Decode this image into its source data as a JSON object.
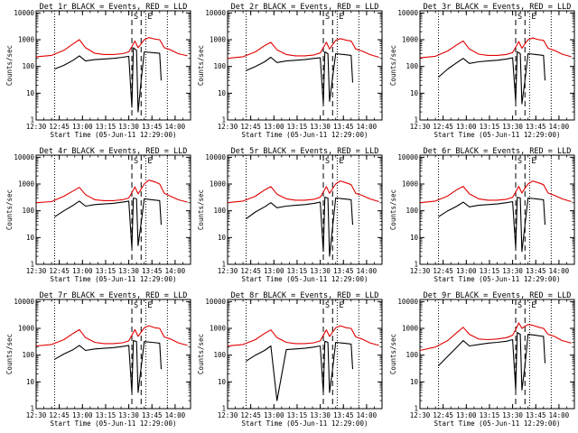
{
  "style": {
    "events_color": "#000000",
    "lld_color": "#e00000",
    "background": "#ffffff",
    "y_scale": "log",
    "grid": false
  },
  "common": {
    "xlabel": "Start Time (05-Jun-11 12:29:00)",
    "ylabel": "Counts/sec",
    "x_ticks": [
      "12:30",
      "12:45",
      "13:00",
      "13:15",
      "13:30",
      "13:45",
      "14:00"
    ],
    "y_ticks": [
      "1",
      "10",
      "100",
      "1000",
      "10000"
    ],
    "marker_S": "S",
    "marker_E": "E"
  },
  "chart_data": [
    {
      "type": "line",
      "title": "Det 1r BLACK = Events, RED = LLD",
      "xlim": [
        "12:30",
        "14:10"
      ],
      "ylim": [
        1,
        12000
      ],
      "dotted_vlines": [
        "12:42",
        "13:41",
        "13:55"
      ],
      "dashed_vlines": [
        "13:32",
        "13:38"
      ],
      "events": {
        "x": [
          "12:42",
          "12:48",
          "12:54",
          "12:58",
          "13:02",
          "13:08",
          "13:14",
          "13:20",
          "13:26",
          "13:30",
          "13:32",
          "13:33",
          "13:35",
          "13:36",
          "13:38",
          "13:40",
          "13:45",
          "13:50",
          "13:51"
        ],
        "y": [
          80,
          110,
          170,
          250,
          160,
          180,
          190,
          200,
          220,
          240,
          3,
          500,
          400,
          2,
          30,
          350,
          330,
          310,
          30
        ]
      },
      "lld": {
        "x": [
          "12:30",
          "12:40",
          "12:48",
          "12:54",
          "12:58",
          "13:02",
          "13:08",
          "13:14",
          "13:20",
          "13:26",
          "13:30",
          "13:32",
          "13:34",
          "13:36",
          "13:38",
          "13:40",
          "13:43",
          "13:47",
          "13:50",
          "13:53",
          "13:57",
          "14:02",
          "14:08"
        ],
        "y": [
          230,
          260,
          400,
          700,
          1000,
          500,
          310,
          280,
          280,
          300,
          350,
          550,
          900,
          500,
          700,
          1000,
          1200,
          1050,
          1000,
          500,
          420,
          300,
          250
        ]
      }
    },
    {
      "type": "line",
      "title": "Det 2r BLACK = Events, RED = LLD",
      "xlim": [
        "12:30",
        "14:10"
      ],
      "ylim": [
        1,
        12000
      ],
      "dotted_vlines": [
        "12:42",
        "13:41",
        "13:55"
      ],
      "dashed_vlines": [
        "13:32",
        "13:38"
      ],
      "events": {
        "x": [
          "12:42",
          "12:48",
          "12:54",
          "12:58",
          "13:02",
          "13:08",
          "13:14",
          "13:20",
          "13:26",
          "13:30",
          "13:32",
          "13:33",
          "13:35",
          "13:36",
          "13:38",
          "13:40",
          "13:45",
          "13:50",
          "13:51"
        ],
        "y": [
          70,
          100,
          150,
          220,
          140,
          160,
          170,
          180,
          200,
          210,
          4,
          350,
          300,
          5,
          40,
          300,
          280,
          260,
          25
        ]
      },
      "lld": {
        "x": [
          "12:30",
          "12:40",
          "12:48",
          "12:54",
          "12:58",
          "13:02",
          "13:08",
          "13:14",
          "13:20",
          "13:26",
          "13:30",
          "13:32",
          "13:34",
          "13:36",
          "13:38",
          "13:40",
          "13:43",
          "13:47",
          "13:50",
          "13:53",
          "13:57",
          "14:02",
          "14:08"
        ],
        "y": [
          200,
          230,
          350,
          600,
          800,
          420,
          280,
          250,
          250,
          270,
          320,
          500,
          800,
          450,
          650,
          950,
          1100,
          950,
          900,
          450,
          380,
          280,
          220
        ]
      }
    },
    {
      "type": "line",
      "title": "Det 3r BLACK = Events, RED = LLD",
      "xlim": [
        "12:30",
        "14:10"
      ],
      "ylim": [
        1,
        12000
      ],
      "dotted_vlines": [
        "12:42",
        "13:41",
        "13:55"
      ],
      "dashed_vlines": [
        "13:32",
        "13:38"
      ],
      "events": {
        "x": [
          "12:42",
          "12:48",
          "12:54",
          "12:58",
          "13:02",
          "13:08",
          "13:14",
          "13:20",
          "13:26",
          "13:30",
          "13:32",
          "13:33",
          "13:35",
          "13:36",
          "13:38",
          "13:40",
          "13:45",
          "13:50",
          "13:51"
        ],
        "y": [
          40,
          80,
          140,
          200,
          130,
          150,
          160,
          170,
          190,
          210,
          5,
          350,
          300,
          4,
          30,
          300,
          280,
          260,
          30
        ]
      },
      "lld": {
        "x": [
          "12:30",
          "12:40",
          "12:48",
          "12:54",
          "12:58",
          "13:02",
          "13:08",
          "13:14",
          "13:20",
          "13:26",
          "13:30",
          "13:32",
          "13:34",
          "13:36",
          "13:38",
          "13:40",
          "13:43",
          "13:47",
          "13:50",
          "13:53",
          "13:57",
          "14:02",
          "14:08"
        ],
        "y": [
          210,
          240,
          380,
          650,
          900,
          450,
          290,
          260,
          260,
          280,
          330,
          520,
          850,
          480,
          700,
          1000,
          1150,
          1000,
          950,
          480,
          400,
          290,
          230
        ]
      }
    },
    {
      "type": "line",
      "title": "Det 4r BLACK = Events, RED = LLD",
      "xlim": [
        "12:30",
        "14:10"
      ],
      "ylim": [
        1,
        12000
      ],
      "dotted_vlines": [
        "12:42",
        "13:41",
        "13:55"
      ],
      "dashed_vlines": [
        "13:32",
        "13:38"
      ],
      "events": {
        "x": [
          "12:42",
          "12:48",
          "12:54",
          "12:58",
          "13:02",
          "13:08",
          "13:14",
          "13:20",
          "13:26",
          "13:30",
          "13:32",
          "13:33",
          "13:35",
          "13:36",
          "13:38",
          "13:40",
          "13:45",
          "13:50",
          "13:51"
        ],
        "y": [
          60,
          100,
          160,
          230,
          150,
          170,
          180,
          190,
          210,
          230,
          4,
          300,
          280,
          5,
          35,
          280,
          260,
          240,
          30
        ]
      },
      "lld": {
        "x": [
          "12:30",
          "12:40",
          "12:48",
          "12:54",
          "12:58",
          "13:02",
          "13:08",
          "13:14",
          "13:20",
          "13:26",
          "13:30",
          "13:32",
          "13:34",
          "13:36",
          "13:38",
          "13:40",
          "13:43",
          "13:47",
          "13:50",
          "13:53",
          "13:57",
          "14:02",
          "14:08"
        ],
        "y": [
          200,
          220,
          350,
          550,
          750,
          400,
          260,
          240,
          240,
          260,
          300,
          480,
          780,
          430,
          650,
          1000,
          1400,
          1200,
          1000,
          450,
          350,
          260,
          210
        ]
      }
    },
    {
      "type": "line",
      "title": "Det 5r BLACK = Events, RED = LLD",
      "xlim": [
        "12:30",
        "14:10"
      ],
      "ylim": [
        1,
        12000
      ],
      "dotted_vlines": [
        "12:42",
        "13:41",
        "13:55"
      ],
      "dashed_vlines": [
        "13:32",
        "13:38"
      ],
      "events": {
        "x": [
          "12:42",
          "12:48",
          "12:54",
          "12:58",
          "13:02",
          "13:08",
          "13:14",
          "13:20",
          "13:26",
          "13:30",
          "13:32",
          "13:33",
          "13:35",
          "13:36",
          "13:38",
          "13:40",
          "13:45",
          "13:50",
          "13:51"
        ],
        "y": [
          50,
          90,
          140,
          200,
          130,
          150,
          160,
          170,
          190,
          210,
          3,
          320,
          300,
          2,
          25,
          300,
          280,
          260,
          30
        ]
      },
      "lld": {
        "x": [
          "12:30",
          "12:40",
          "12:48",
          "12:54",
          "12:58",
          "13:02",
          "13:08",
          "13:14",
          "13:20",
          "13:26",
          "13:30",
          "13:32",
          "13:34",
          "13:36",
          "13:38",
          "13:40",
          "13:43",
          "13:47",
          "13:50",
          "13:53",
          "13:57",
          "14:02",
          "14:08"
        ],
        "y": [
          200,
          230,
          350,
          600,
          800,
          420,
          280,
          250,
          250,
          270,
          320,
          500,
          800,
          450,
          680,
          1000,
          1300,
          1100,
          950,
          450,
          380,
          280,
          220
        ]
      }
    },
    {
      "type": "line",
      "title": "Det 6r BLACK = Events, RED = LLD",
      "xlim": [
        "12:30",
        "14:10"
      ],
      "ylim": [
        1,
        12000
      ],
      "dotted_vlines": [
        "12:42",
        "13:41",
        "13:55"
      ],
      "dashed_vlines": [
        "13:32",
        "13:38"
      ],
      "events": {
        "x": [
          "12:42",
          "12:48",
          "12:54",
          "12:58",
          "13:02",
          "13:08",
          "13:14",
          "13:20",
          "13:26",
          "13:30",
          "13:32",
          "13:33",
          "13:35",
          "13:36",
          "13:38",
          "13:40",
          "13:45",
          "13:50",
          "13:51"
        ],
        "y": [
          60,
          100,
          150,
          210,
          140,
          160,
          170,
          180,
          200,
          220,
          4,
          320,
          300,
          3,
          30,
          300,
          280,
          260,
          30
        ]
      },
      "lld": {
        "x": [
          "12:30",
          "12:40",
          "12:48",
          "12:54",
          "12:58",
          "13:02",
          "13:08",
          "13:14",
          "13:20",
          "13:26",
          "13:30",
          "13:32",
          "13:34",
          "13:36",
          "13:38",
          "13:40",
          "13:43",
          "13:47",
          "13:50",
          "13:53",
          "13:57",
          "14:02",
          "14:08"
        ],
        "y": [
          200,
          230,
          360,
          620,
          820,
          430,
          280,
          250,
          250,
          270,
          320,
          500,
          820,
          460,
          700,
          1000,
          1300,
          1100,
          950,
          460,
          380,
          280,
          220
        ]
      }
    },
    {
      "type": "line",
      "title": "Det 7r BLACK = Events, RED = LLD",
      "xlim": [
        "12:30",
        "14:10"
      ],
      "ylim": [
        1,
        12000
      ],
      "dotted_vlines": [
        "12:42",
        "13:41",
        "13:55"
      ],
      "dashed_vlines": [
        "13:32",
        "13:38"
      ],
      "events": {
        "x": [
          "12:42",
          "12:48",
          "12:54",
          "12:58",
          "13:02",
          "13:08",
          "13:14",
          "13:20",
          "13:26",
          "13:30",
          "13:32",
          "13:33",
          "13:35",
          "13:36",
          "13:38",
          "13:40",
          "13:45",
          "13:50",
          "13:51"
        ],
        "y": [
          70,
          110,
          160,
          230,
          150,
          170,
          180,
          190,
          210,
          230,
          4,
          350,
          320,
          4,
          35,
          320,
          300,
          280,
          30
        ]
      },
      "lld": {
        "x": [
          "12:30",
          "12:40",
          "12:48",
          "12:54",
          "12:58",
          "13:02",
          "13:08",
          "13:14",
          "13:20",
          "13:26",
          "13:30",
          "13:32",
          "13:34",
          "13:36",
          "13:38",
          "13:40",
          "13:43",
          "13:47",
          "13:50",
          "13:53",
          "13:57",
          "14:02",
          "14:08"
        ],
        "y": [
          220,
          250,
          380,
          650,
          900,
          450,
          300,
          270,
          270,
          290,
          340,
          550,
          900,
          500,
          720,
          1050,
          1250,
          1050,
          1000,
          480,
          400,
          290,
          230
        ]
      }
    },
    {
      "type": "line",
      "title": "Det 8r BLACK = Events, RED = LLD",
      "xlim": [
        "12:30",
        "14:10"
      ],
      "ylim": [
        1,
        12000
      ],
      "dotted_vlines": [
        "12:42",
        "13:41",
        "13:55"
      ],
      "dashed_vlines": [
        "13:32",
        "13:38"
      ],
      "events": {
        "x": [
          "12:42",
          "12:48",
          "12:54",
          "12:58",
          "13:02",
          "13:08",
          "13:14",
          "13:20",
          "13:26",
          "13:30",
          "13:32",
          "13:33",
          "13:35",
          "13:36",
          "13:38",
          "13:40",
          "13:45",
          "13:50",
          "13:51"
        ],
        "y": [
          60,
          100,
          150,
          220,
          2,
          160,
          170,
          180,
          200,
          220,
          4,
          330,
          300,
          4,
          30,
          300,
          280,
          260,
          30
        ]
      },
      "lld": {
        "x": [
          "12:30",
          "12:40",
          "12:48",
          "12:54",
          "12:58",
          "13:02",
          "13:08",
          "13:14",
          "13:20",
          "13:26",
          "13:30",
          "13:32",
          "13:34",
          "13:36",
          "13:38",
          "13:40",
          "13:43",
          "13:47",
          "13:50",
          "13:53",
          "13:57",
          "14:02",
          "14:08"
        ],
        "y": [
          220,
          250,
          380,
          650,
          880,
          450,
          300,
          270,
          270,
          290,
          340,
          550,
          880,
          500,
          720,
          1050,
          1250,
          1050,
          1000,
          480,
          400,
          290,
          230
        ]
      }
    },
    {
      "type": "line",
      "title": "Det 9r BLACK = Events, RED = LLD",
      "xlim": [
        "12:30",
        "14:10"
      ],
      "ylim": [
        1,
        12000
      ],
      "dotted_vlines": [
        "12:42",
        "13:41",
        "13:55"
      ],
      "dashed_vlines": [
        "13:32",
        "13:38"
      ],
      "events": {
        "x": [
          "12:42",
          "12:48",
          "12:54",
          "12:58",
          "13:02",
          "13:08",
          "13:14",
          "13:20",
          "13:26",
          "13:30",
          "13:32",
          "13:33",
          "13:35",
          "13:36",
          "13:38",
          "13:40",
          "13:45",
          "13:50",
          "13:51"
        ],
        "y": [
          40,
          90,
          200,
          350,
          220,
          250,
          280,
          300,
          330,
          380,
          5,
          700,
          600,
          5,
          40,
          600,
          550,
          500,
          50
        ]
      },
      "lld": {
        "x": [
          "12:30",
          "12:40",
          "12:48",
          "12:54",
          "12:58",
          "13:02",
          "13:08",
          "13:14",
          "13:20",
          "13:26",
          "13:30",
          "13:32",
          "13:34",
          "13:36",
          "13:38",
          "13:40",
          "13:43",
          "13:47",
          "13:50",
          "13:53",
          "13:57",
          "14:02",
          "14:08"
        ],
        "y": [
          150,
          200,
          350,
          700,
          1100,
          600,
          400,
          380,
          400,
          450,
          550,
          900,
          1600,
          1000,
          1200,
          1400,
          1300,
          1100,
          1000,
          600,
          500,
          350,
          280
        ]
      }
    }
  ]
}
